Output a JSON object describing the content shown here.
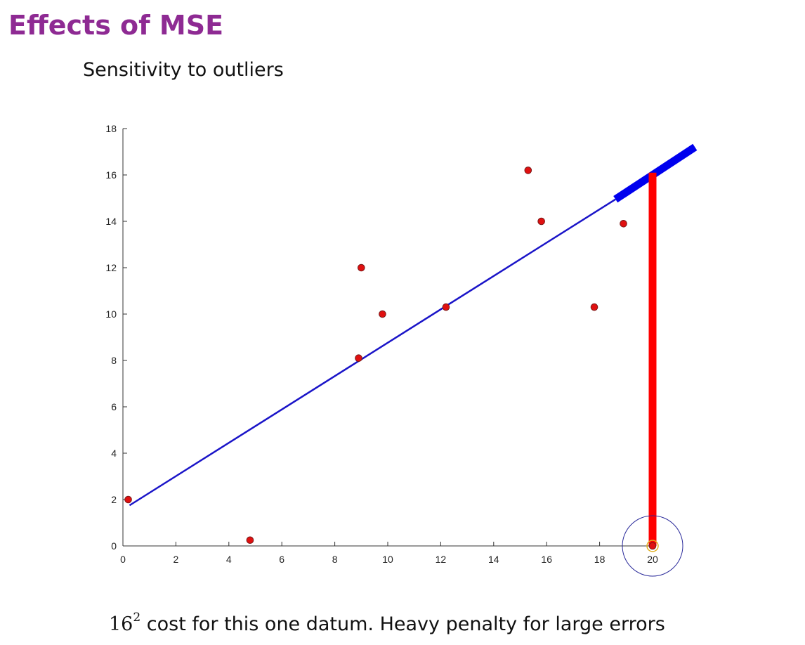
{
  "slide": {
    "title": "Effects of MSE",
    "subtitle": "Sensitivity to outliers",
    "caption": {
      "base": "16",
      "exponent": "2",
      "text": " cost for this one datum. Heavy penalty for large errors"
    }
  },
  "colors": {
    "title": "#8e2a93",
    "fit_line": "#1a14c8",
    "point_fill": "#e01010",
    "residual": "#ff0000",
    "highlight_circle": "#2a2a9a",
    "thick_segment": "#0000ee"
  },
  "chart_data": {
    "type": "scatter",
    "title": "",
    "xlabel": "",
    "ylabel": "",
    "xlim": [
      0,
      20
    ],
    "ylim": [
      0,
      18
    ],
    "xticks": [
      0,
      2,
      4,
      6,
      8,
      10,
      12,
      14,
      16,
      18,
      20
    ],
    "yticks": [
      0,
      2,
      4,
      6,
      8,
      10,
      12,
      14,
      16,
      18
    ],
    "grid": false,
    "series": [
      {
        "points": [
          {
            "x": 0.2,
            "y": 2.0
          },
          {
            "x": 4.8,
            "y": 0.25
          },
          {
            "x": 8.9,
            "y": 8.1
          },
          {
            "x": 9.0,
            "y": 12.0
          },
          {
            "x": 9.8,
            "y": 10.0
          },
          {
            "x": 12.2,
            "y": 10.3
          },
          {
            "x": 15.3,
            "y": 16.2
          },
          {
            "x": 15.8,
            "y": 14.0
          },
          {
            "x": 17.8,
            "y": 10.3
          },
          {
            "x": 18.9,
            "y": 13.9
          },
          {
            "x": 20.0,
            "y": 0.0
          }
        ]
      }
    ],
    "fit_line": {
      "from": {
        "x": 0.25,
        "y": 1.75
      },
      "to": {
        "x": 18.6,
        "y": 14.95
      }
    },
    "annotations": {
      "thick_segment": {
        "from": {
          "x": 18.6,
          "y": 14.95
        },
        "to": {
          "x": 21.6,
          "y": 17.2
        }
      },
      "residual": {
        "x": 20.0,
        "y_from": 0.0,
        "y_to": 16.1
      },
      "outlier_point": {
        "x": 20.0,
        "y": 0.0
      }
    }
  }
}
